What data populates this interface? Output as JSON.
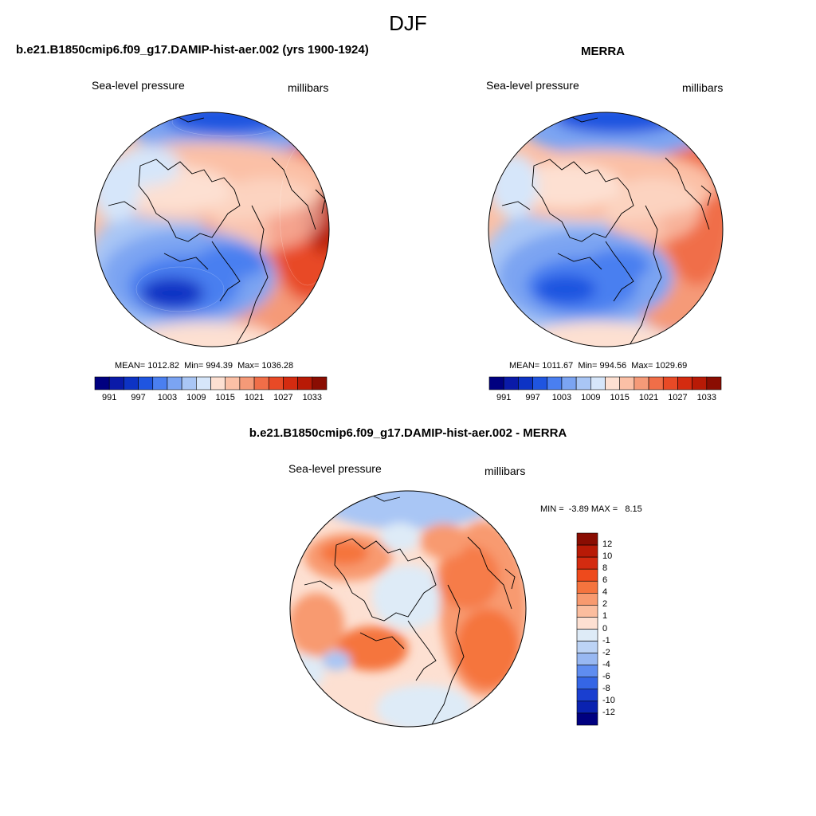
{
  "figure": {
    "title": "DJF"
  },
  "panels": {
    "left": {
      "title": "b.e21.B1850cmip6.f09_g17.DAMIP-hist-aer.002 (yrs 1900-1924)",
      "variable": "Sea-level pressure",
      "units": "millibars",
      "stats": "MEAN= 1012.82  Min= 994.39  Max= 1036.28"
    },
    "right": {
      "title": "MERRA",
      "variable": "Sea-level pressure",
      "units": "millibars",
      "stats": "MEAN= 1011.67  Min= 994.56  Max= 1029.69"
    },
    "diff": {
      "title": "b.e21.B1850cmip6.f09_g17.DAMIP-hist-aer.002 - MERRA",
      "variable": "Sea-level pressure",
      "units": "millibars",
      "stats": "MIN =  -3.89 MAX =   8.15"
    }
  },
  "chart_data": [
    {
      "type": "heatmap",
      "projection": "north-polar-stereographic",
      "title": "b.e21.B1850cmip6.f09_g17.DAMIP-hist-aer.002 (yrs 1900-1924)",
      "variable": "Sea-level pressure",
      "units": "millibars",
      "mean": 1012.82,
      "min": 994.39,
      "max": 1036.28,
      "colorbar_levels": [
        991,
        994,
        997,
        1000,
        1003,
        1006,
        1009,
        1012,
        1015,
        1018,
        1021,
        1024,
        1027,
        1030,
        1033
      ],
      "colorbar_labels": [
        "991",
        "997",
        "1003",
        "1009",
        "1015",
        "1021",
        "1027",
        "1033"
      ],
      "colorbar_colors": [
        "#000080",
        "#0a1aa8",
        "#0d33c4",
        "#1f55e0",
        "#4a7ff0",
        "#7ba4f2",
        "#a9c6f5",
        "#d6e6fa",
        "#fde0d2",
        "#fbc0a6",
        "#f59a78",
        "#f06e48",
        "#e84a26",
        "#d42b10",
        "#b81a06",
        "#8a0d02"
      ]
    },
    {
      "type": "heatmap",
      "projection": "north-polar-stereographic",
      "title": "MERRA",
      "variable": "Sea-level pressure",
      "units": "millibars",
      "mean": 1011.67,
      "min": 994.56,
      "max": 1029.69,
      "colorbar_levels": [
        991,
        994,
        997,
        1000,
        1003,
        1006,
        1009,
        1012,
        1015,
        1018,
        1021,
        1024,
        1027,
        1030,
        1033
      ],
      "colorbar_labels": [
        "991",
        "997",
        "1003",
        "1009",
        "1015",
        "1021",
        "1027",
        "1033"
      ]
    },
    {
      "type": "heatmap",
      "projection": "north-polar-stereographic",
      "title": "b.e21.B1850cmip6.f09_g17.DAMIP-hist-aer.002 - MERRA",
      "variable": "Sea-level pressure",
      "units": "millibars",
      "min": -3.89,
      "max": 8.15,
      "colorbar_levels": [
        12,
        10,
        8,
        6,
        4,
        2,
        1,
        0,
        -1,
        -2,
        -4,
        -6,
        -8,
        -10,
        -12
      ],
      "colorbar_labels": [
        "12",
        "10",
        "8",
        "6",
        "4",
        "2",
        "1",
        "0",
        "-1",
        "-2",
        "-4",
        "-6",
        "-8",
        "-10",
        "-12"
      ],
      "colorbar_colors": [
        "#8a0d02",
        "#b81a06",
        "#d42b10",
        "#ee4a1c",
        "#f5743e",
        "#f89a6f",
        "#fbbd9e",
        "#fde0d2",
        "#deebf7",
        "#bcd3f5",
        "#98b8f2",
        "#5f8df0",
        "#3566e6",
        "#1a3fd0",
        "#0a22b0",
        "#000080"
      ]
    }
  ]
}
